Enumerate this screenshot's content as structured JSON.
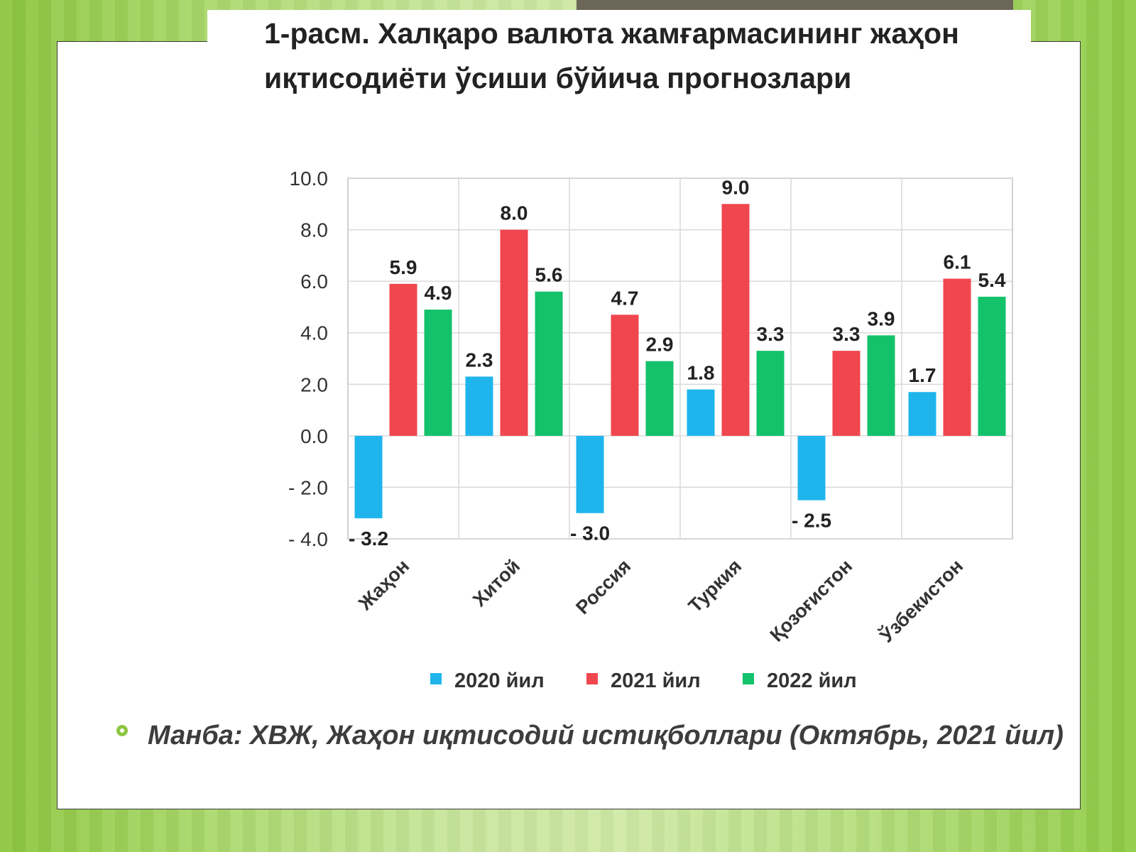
{
  "slide": {
    "title": "1-расм. Халқаро валюта жамғармасининг жаҳон иқтисодиёти ўсиши бўйича прогнозлари",
    "source_note": "Манба: ХВЖ, Жаҳон иқтисодий истиқболлари (Октябрь, 2021 йил)"
  },
  "chart_data": {
    "type": "bar",
    "categories": [
      "Жаҳон",
      "Хитой",
      "Россия",
      "Туркия",
      "Қозоғистон",
      "Ўзбекистон"
    ],
    "series": [
      {
        "name": "2020 йил",
        "color": "#1fb5ec",
        "values": [
          -3.2,
          2.3,
          -3.0,
          1.8,
          -2.5,
          1.7
        ],
        "labels": [
          "- 3.2",
          "2.3",
          "- 3.0",
          "1.8",
          "- 2.5",
          "1.7"
        ]
      },
      {
        "name": "2021 йил",
        "color": "#f0464e",
        "values": [
          5.9,
          8.0,
          4.7,
          9.0,
          3.3,
          6.1
        ],
        "labels": [
          "5.9",
          "8.0",
          "4.7",
          "9.0",
          "3.3",
          "6.1"
        ]
      },
      {
        "name": "2022 йил",
        "color": "#13c26b",
        "values": [
          4.9,
          5.6,
          2.9,
          3.3,
          3.9,
          5.4
        ],
        "labels": [
          "4.9",
          "5.6",
          "2.9",
          "3.3",
          "3.9",
          "5.4"
        ]
      }
    ],
    "yticks": [
      "- 4.0",
      "- 2.0",
      "0.0",
      "2.0",
      "4.0",
      "6.0",
      "8.0",
      "10.0"
    ],
    "ylim": [
      -4,
      10
    ],
    "xlabel": "",
    "ylabel": "",
    "grid": true,
    "legend_position": "bottom"
  }
}
